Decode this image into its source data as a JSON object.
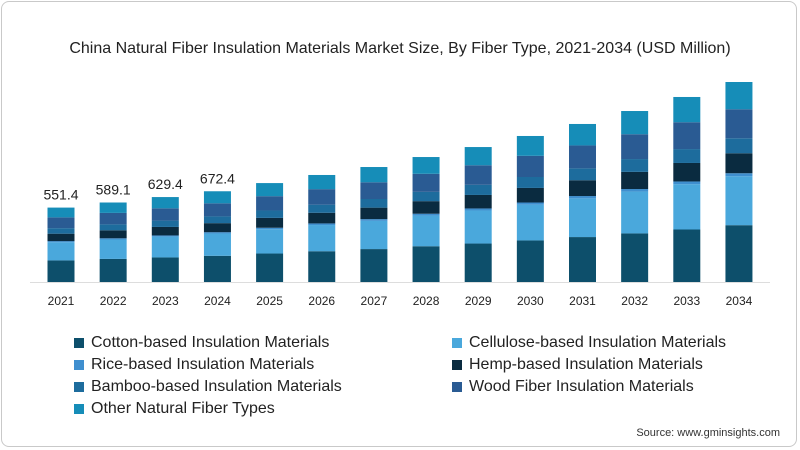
{
  "chart_data": {
    "type": "bar",
    "stacked": true,
    "title": "China Natural Fiber Insulation Materials Market Size, By Fiber Type, 2021-2034 (USD Million)",
    "xlabel": "",
    "ylabel": "",
    "categories": [
      "2021",
      "2022",
      "2023",
      "2024",
      "2025",
      "2026",
      "2027",
      "2028",
      "2029",
      "2030",
      "2031",
      "2032",
      "2033",
      "2034"
    ],
    "series": [
      {
        "name": "Cotton-based Insulation Materials",
        "color": "#0d4f6b",
        "values": [
          160,
          171,
          182,
          194,
          211,
          228,
          244,
          265,
          285,
          308,
          333,
          360,
          389,
          421
        ]
      },
      {
        "name": "Cellulose-based Insulation Materials",
        "color": "#4aa8dc",
        "values": [
          135,
          144,
          154,
          165,
          180,
          194,
          209,
          227,
          245,
          265,
          287,
          310,
          336,
          363
        ]
      },
      {
        "name": "Rice-based Insulation Materials",
        "color": "#3f8fcf",
        "values": [
          8,
          9,
          9,
          10,
          11,
          12,
          13,
          14,
          15,
          16,
          17,
          19,
          20,
          22
        ]
      },
      {
        "name": "Hemp-based Insulation Materials",
        "color": "#0a2b40",
        "values": [
          55,
          59,
          63,
          67,
          73,
          79,
          85,
          93,
          100,
          108,
          117,
          127,
          137,
          148
        ]
      },
      {
        "name": "Bamboo-based Insulation Materials",
        "color": "#1d6c9d",
        "values": [
          41,
          44,
          47,
          50,
          55,
          60,
          64,
          69,
          75,
          81,
          88,
          95,
          103,
          111
        ]
      },
      {
        "name": "Wood Fiber Insulation Materials",
        "color": "#2a5b93",
        "values": [
          80,
          85,
          91,
          97,
          106,
          115,
          124,
          134,
          145,
          157,
          170,
          184,
          199,
          215
        ]
      },
      {
        "name": "Other Natural Fiber Types",
        "color": "#168db8",
        "values": [
          72.4,
          77.1,
          83.4,
          89.4,
          97,
          105,
          113,
          124,
          135,
          147,
          159,
          172,
          187,
          202
        ]
      }
    ],
    "data_labels": [
      "551.4",
      "589.1",
      "629.4",
      "672.4"
    ],
    "ylim": [
      0,
      1500
    ],
    "grid": false,
    "legend_placement": "bottom"
  },
  "source": "Source: www.gminsights.com"
}
